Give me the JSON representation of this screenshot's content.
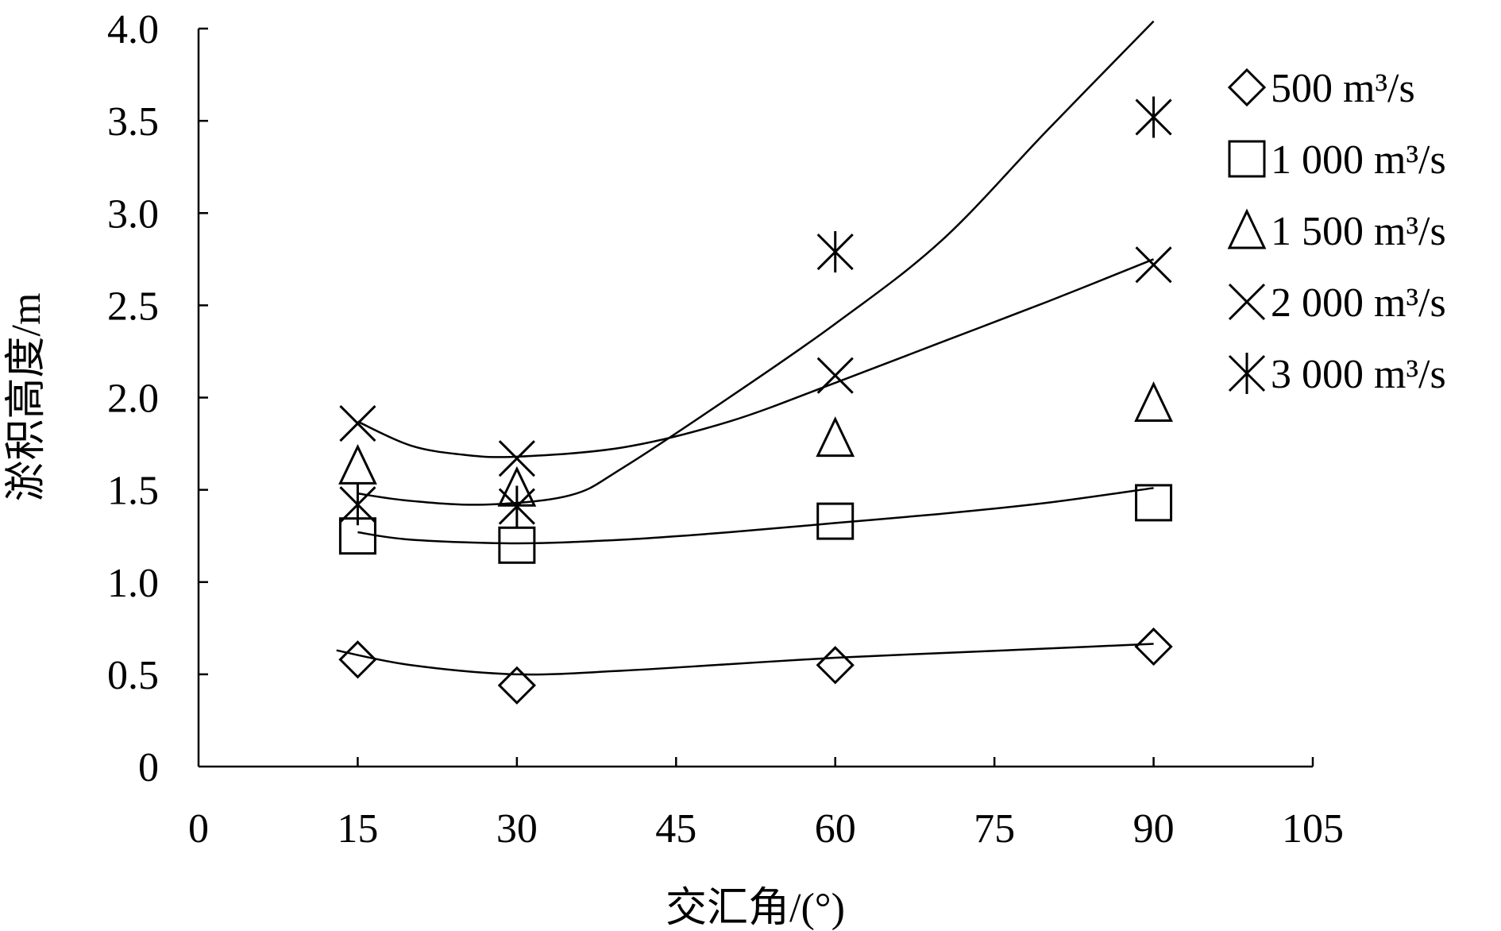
{
  "chart_data": {
    "type": "scatter",
    "title": "",
    "xlabel": "交汇角/(°)",
    "ylabel": "淤积高度/m",
    "xlim": [
      0,
      105
    ],
    "ylim": [
      0,
      4.0
    ],
    "x_ticks": [
      0,
      15,
      30,
      45,
      60,
      75,
      90,
      105
    ],
    "x_tick_labels": [
      "0",
      "15",
      "30",
      "45",
      "60",
      "75",
      "90",
      "105"
    ],
    "y_ticks": [
      0,
      0.5,
      1.0,
      1.5,
      2.0,
      2.5,
      3.0,
      3.5,
      4.0
    ],
    "y_tick_labels": [
      "0",
      "0.5",
      "1.0",
      "1.5",
      "2.0",
      "2.5",
      "3.0",
      "3.5",
      "4.0"
    ],
    "grid": false,
    "legend_position": "right",
    "series": [
      {
        "name": "500 m³/s",
        "marker": "diamond",
        "x": [
          15,
          30,
          60,
          90
        ],
        "y": [
          0.58,
          0.44,
          0.55,
          0.65
        ],
        "trend_x": [
          13,
          20,
          30,
          40,
          50,
          60,
          70,
          80,
          90
        ],
        "trend_y": [
          0.63,
          0.55,
          0.5,
          0.52,
          0.555,
          0.59,
          0.615,
          0.64,
          0.665
        ]
      },
      {
        "name": "1 000 m³/s",
        "marker": "square",
        "x": [
          15,
          30,
          60,
          90
        ],
        "y": [
          1.25,
          1.2,
          1.33,
          1.43
        ],
        "trend_x": [
          15,
          20,
          30,
          40,
          50,
          60,
          70,
          80,
          90
        ],
        "trend_y": [
          1.27,
          1.23,
          1.21,
          1.23,
          1.27,
          1.32,
          1.37,
          1.43,
          1.51
        ]
      },
      {
        "name": "1 500 m³/s",
        "marker": "triangle",
        "x": [
          15,
          30,
          60,
          90
        ],
        "y": [
          1.63,
          1.51,
          1.78,
          1.97
        ]
      },
      {
        "name": "2 000 m³/s",
        "marker": "x",
        "x": [
          15,
          30,
          60,
          90
        ],
        "y": [
          1.86,
          1.67,
          2.12,
          2.72
        ],
        "trend_x": [
          15,
          20,
          25,
          30,
          40,
          50,
          60,
          70,
          80,
          90
        ],
        "trend_y": [
          1.87,
          1.74,
          1.69,
          1.68,
          1.73,
          1.87,
          2.08,
          2.3,
          2.52,
          2.75
        ]
      },
      {
        "name": "3 000 m³/s",
        "marker": "asterisk",
        "x": [
          15,
          30,
          60,
          90
        ],
        "y": [
          1.42,
          1.41,
          2.79,
          3.52
        ],
        "trend_x": [
          15,
          20,
          27,
          35,
          40,
          50,
          60,
          70,
          80,
          90
        ],
        "trend_y": [
          1.48,
          1.44,
          1.42,
          1.47,
          1.62,
          2.0,
          2.4,
          2.85,
          3.45,
          4.04
        ]
      }
    ]
  }
}
